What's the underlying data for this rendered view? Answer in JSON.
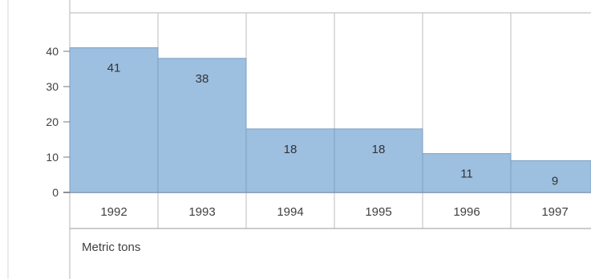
{
  "chart_data": {
    "type": "bar",
    "categories": [
      "1992",
      "1993",
      "1994",
      "1995",
      "1996",
      "1997"
    ],
    "values": [
      41,
      38,
      18,
      18,
      11,
      9
    ],
    "ylim": [
      0,
      45
    ],
    "yticks": [
      0,
      10,
      20,
      30,
      40
    ],
    "unit": "Metric tons",
    "bar_color": "#9dbfe0",
    "bar_edge_color": "#7d9fc1",
    "grid": true,
    "legend": "none"
  }
}
